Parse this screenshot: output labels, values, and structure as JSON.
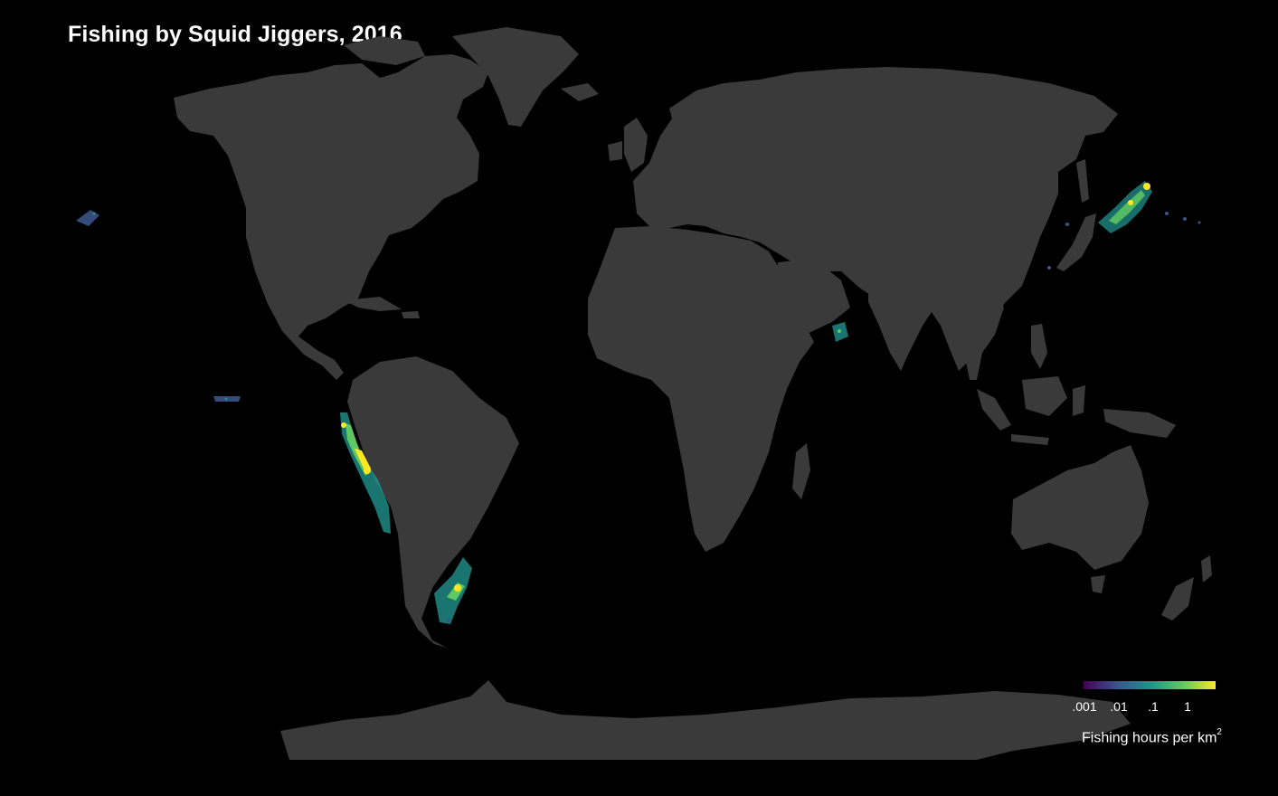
{
  "title": "Fishing by Squid Jiggers, 2016",
  "colors": {
    "background": "#000000",
    "land": "#3a3a3a",
    "scale": [
      "#440154",
      "#3b528b",
      "#21918c",
      "#5ec962",
      "#fde725"
    ]
  },
  "legend": {
    "ticks": [
      ".001",
      ".01",
      ".1",
      "1"
    ],
    "title": "Fishing hours per km",
    "title_superscript": "2"
  },
  "fishing_regions": [
    {
      "name": "Northwest Pacific (off Japan)",
      "intensity": "high"
    },
    {
      "name": "Southeast Pacific (off Peru / Chile)",
      "intensity": "high"
    },
    {
      "name": "Southwest Atlantic (off Argentina)",
      "intensity": "high"
    },
    {
      "name": "Arabian Sea",
      "intensity": "medium"
    },
    {
      "name": "North Pacific (near Hawaii)",
      "intensity": "low"
    },
    {
      "name": "Equatorial East Pacific",
      "intensity": "low"
    }
  ]
}
